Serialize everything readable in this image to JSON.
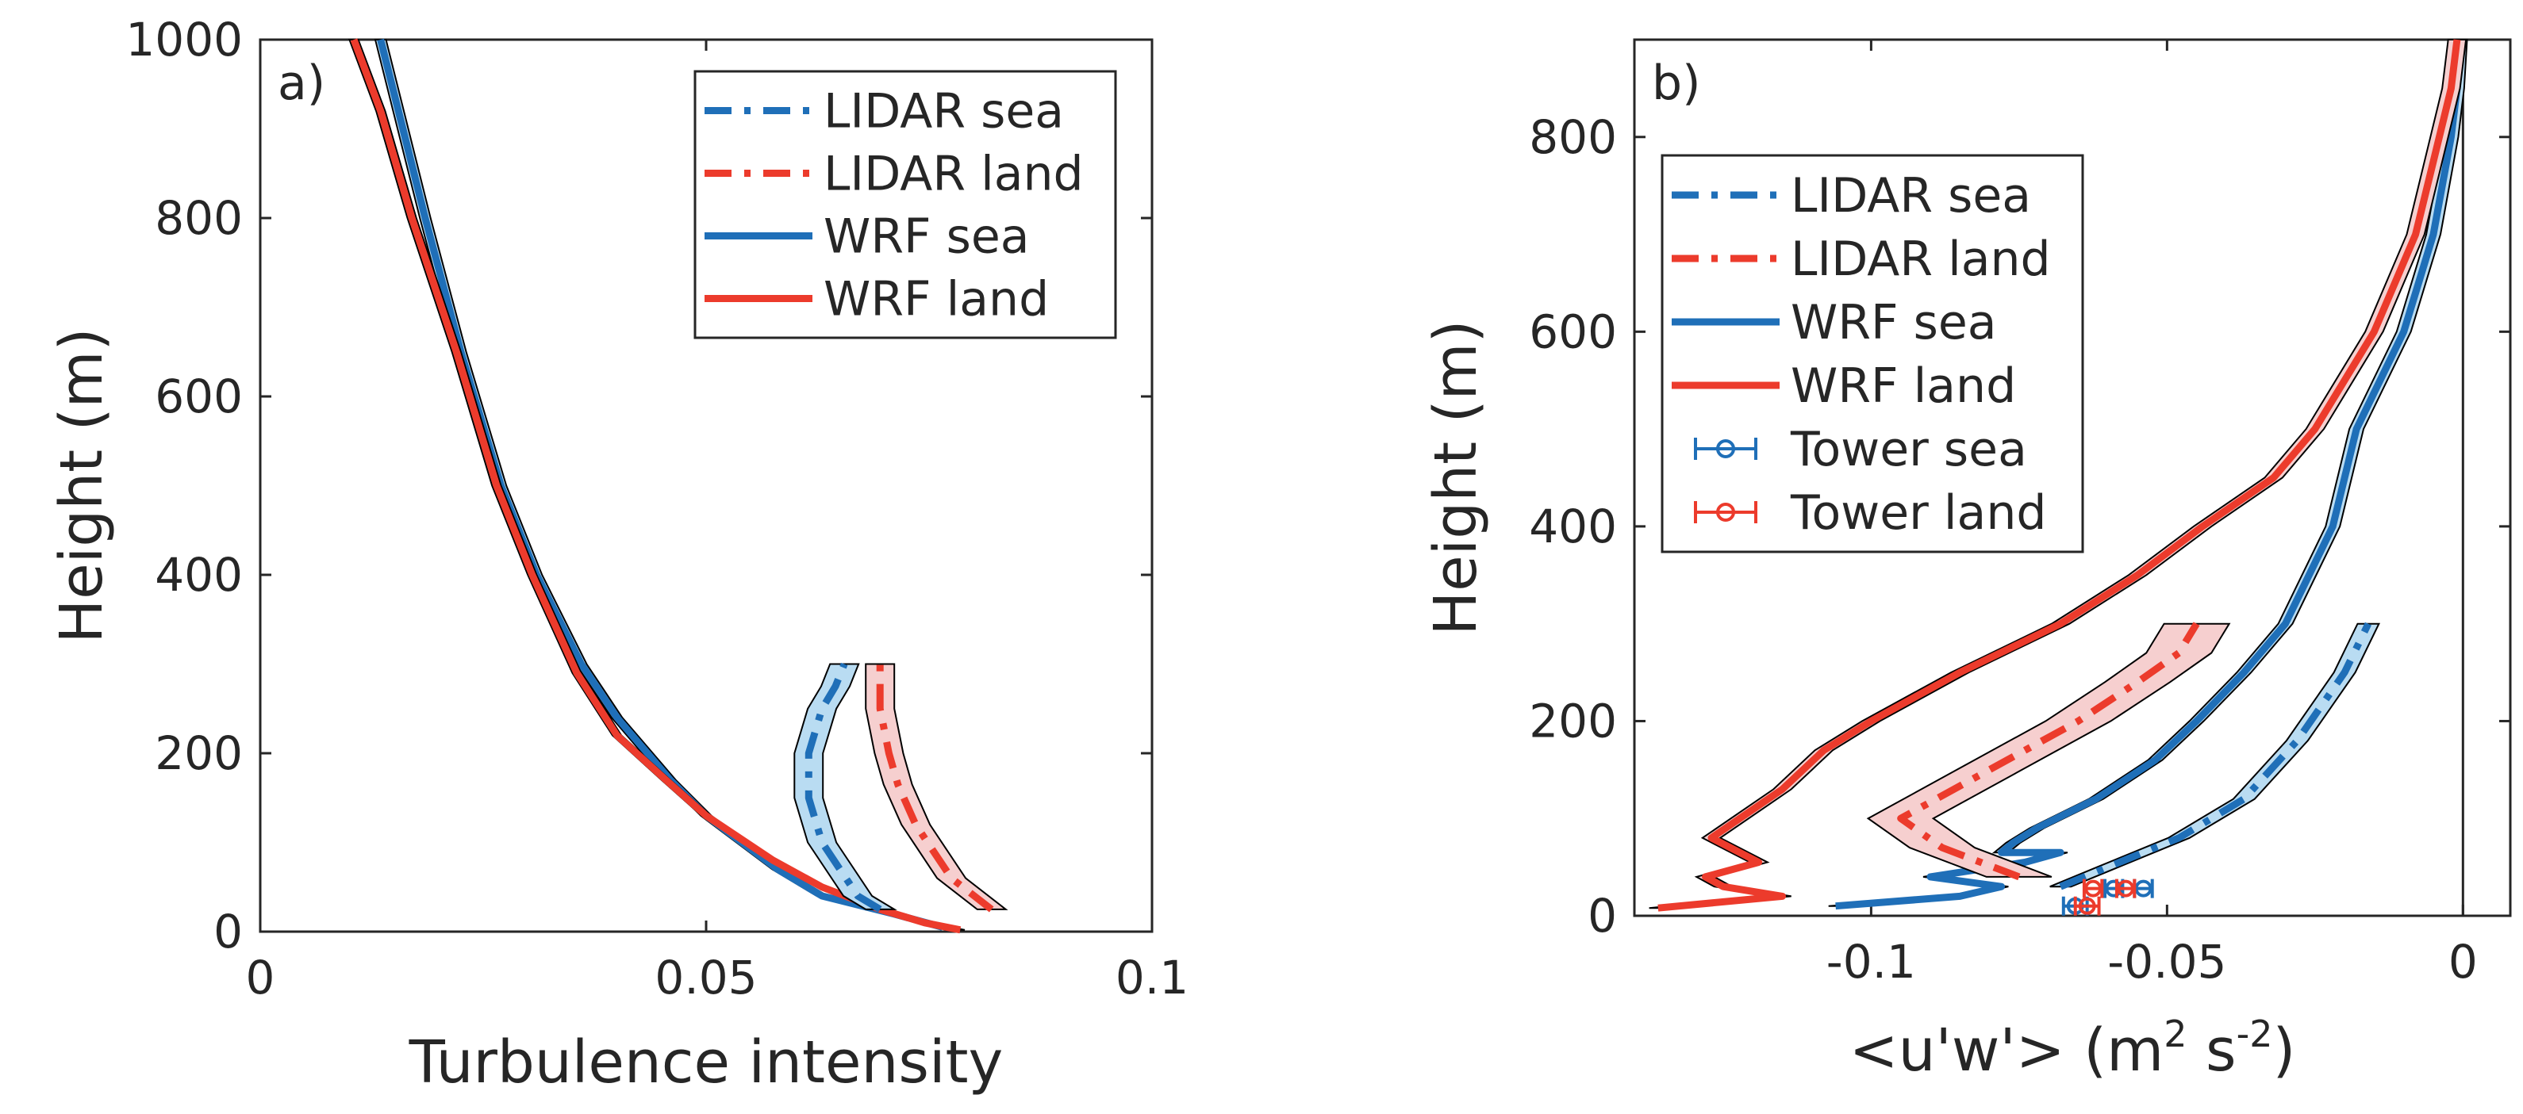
{
  "colors": {
    "sea": "#1f6fb8",
    "land": "#ec3b2c",
    "sea_fill": "#b9dcf2",
    "land_fill": "#f6cfcf",
    "axis": "#262626",
    "outline": "#000000"
  },
  "chart_data": [
    {
      "type": "line",
      "panel_label": "a)",
      "xlabel": "Turbulence intensity",
      "ylabel": "Height (m)",
      "xlim": [
        0,
        0.1
      ],
      "ylim": [
        0,
        1000
      ],
      "xticks": [
        0,
        0.05,
        0.1
      ],
      "xtick_labels": [
        "0",
        "0.05",
        "0.1"
      ],
      "yticks": [
        0,
        200,
        400,
        600,
        800,
        1000
      ],
      "ytick_labels": [
        "0",
        "200",
        "400",
        "600",
        "800",
        "1000"
      ],
      "legend_position": "top-right",
      "legend": [
        {
          "label": "LIDAR sea",
          "color": "sea",
          "style": "dashdot"
        },
        {
          "label": "LIDAR land",
          "color": "land",
          "style": "dashdot"
        },
        {
          "label": "WRF sea",
          "color": "sea",
          "style": "solid"
        },
        {
          "label": "WRF land",
          "color": "land",
          "style": "solid"
        }
      ],
      "series": [
        {
          "name": "WRF sea",
          "color": "sea",
          "style": "solid",
          "halfwidth": 0.0006,
          "x": [
            0.0765,
            0.071,
            0.063,
            0.058,
            0.05,
            0.046,
            0.04,
            0.036,
            0.031,
            0.027,
            0.0225,
            0.0185,
            0.0155,
            0.0135
          ],
          "y": [
            5,
            20,
            40,
            70,
            130,
            170,
            240,
            300,
            400,
            500,
            650,
            800,
            920,
            1000
          ]
        },
        {
          "name": "WRF land",
          "color": "land",
          "style": "solid",
          "halfwidth": 0.0005,
          "x": [
            0.0785,
            0.0745,
            0.0695,
            0.063,
            0.0575,
            0.05,
            0.0455,
            0.04,
            0.0355,
            0.0305,
            0.0265,
            0.022,
            0.017,
            0.0135,
            0.0105
          ],
          "y": [
            2,
            10,
            25,
            50,
            80,
            130,
            170,
            220,
            290,
            400,
            500,
            650,
            800,
            920,
            1000
          ]
        },
        {
          "name": "LIDAR sea",
          "color": "sea",
          "style": "dashdot",
          "halfwidth": 0.0016,
          "x": [
            0.0695,
            0.067,
            0.063,
            0.0615,
            0.0615,
            0.063,
            0.0645,
            0.0655
          ],
          "y": [
            25,
            40,
            100,
            150,
            200,
            250,
            275,
            300
          ]
        },
        {
          "name": "LIDAR land",
          "color": "land",
          "style": "dashdot",
          "halfwidth": 0.0016,
          "x": [
            0.082,
            0.0775,
            0.0735,
            0.0715,
            0.0705,
            0.0695,
            0.0695
          ],
          "y": [
            25,
            60,
            120,
            165,
            200,
            250,
            300
          ]
        }
      ]
    },
    {
      "type": "line",
      "panel_label": "b)",
      "xlabel": "<u'w'> (m",
      "xlabel_sup1": "2",
      "xlabel_mid": " s",
      "xlabel_sup2": "-2",
      "xlabel_end": ")",
      "ylabel": "Height (m)",
      "xlim": [
        -0.14,
        0.008
      ],
      "ylim": [
        0,
        900
      ],
      "xticks": [
        -0.1,
        -0.05,
        0
      ],
      "xtick_labels": [
        "-0.1",
        "-0.05",
        "0"
      ],
      "yticks": [
        0,
        200,
        400,
        600,
        800
      ],
      "ytick_labels": [
        "0",
        "200",
        "400",
        "600",
        "800"
      ],
      "zero_line": true,
      "legend_position": "top-left",
      "legend": [
        {
          "label": "LIDAR sea",
          "color": "sea",
          "style": "dashdot"
        },
        {
          "label": "LIDAR land",
          "color": "land",
          "style": "dashdot"
        },
        {
          "label": "WRF sea",
          "color": "sea",
          "style": "solid"
        },
        {
          "label": "WRF land",
          "color": "land",
          "style": "solid"
        },
        {
          "label": "Tower sea",
          "color": "sea",
          "style": "errorbar"
        },
        {
          "label": "Tower land",
          "color": "land",
          "style": "errorbar"
        }
      ],
      "series": [
        {
          "name": "WRF sea",
          "color": "sea",
          "style": "solid",
          "halfwidth": 0.0012,
          "x": [
            -0.106,
            -0.085,
            -0.078,
            -0.09,
            -0.074,
            -0.068,
            -0.078,
            -0.076,
            -0.072,
            -0.062,
            -0.052,
            -0.045,
            -0.037,
            -0.03,
            -0.022,
            -0.018,
            -0.01,
            -0.005,
            -0.002,
            -0.001,
            -0.0005
          ],
          "y": [
            10,
            20,
            30,
            40,
            55,
            65,
            65,
            75,
            90,
            120,
            160,
            200,
            250,
            300,
            400,
            500,
            600,
            700,
            800,
            850,
            900
          ]
        },
        {
          "name": "WRF land",
          "color": "land",
          "style": "solid",
          "halfwidth": 0.0015,
          "x": [
            -0.136,
            -0.115,
            -0.125,
            -0.128,
            -0.119,
            -0.127,
            -0.115,
            -0.108,
            -0.1,
            -0.085,
            -0.068,
            -0.055,
            -0.044,
            -0.032,
            -0.025,
            -0.015,
            -0.008,
            -0.004,
            -0.002,
            -0.001
          ],
          "y": [
            8,
            20,
            30,
            40,
            55,
            80,
            130,
            170,
            200,
            250,
            300,
            350,
            400,
            450,
            500,
            600,
            700,
            800,
            850,
            900
          ]
        },
        {
          "name": "LIDAR sea",
          "color": "sea",
          "style": "dashdot",
          "halfwidth": 0.0018,
          "x": [
            -0.068,
            -0.06,
            -0.048,
            -0.037,
            -0.028,
            -0.02,
            -0.016
          ],
          "y": [
            30,
            50,
            80,
            120,
            180,
            250,
            300
          ]
        },
        {
          "name": "LIDAR land",
          "color": "land",
          "style": "dashdot",
          "halfwidth": 0.0055,
          "x": [
            -0.075,
            -0.088,
            -0.095,
            -0.08,
            -0.065,
            -0.055,
            -0.048,
            -0.045
          ],
          "y": [
            40,
            70,
            100,
            150,
            200,
            240,
            270,
            300
          ]
        }
      ],
      "tower_points": [
        {
          "name": "Tower sea",
          "color": "sea",
          "points": [
            {
              "x": -0.0655,
              "y": 10,
              "xerr": 0.002
            },
            {
              "x": -0.059,
              "y": 28,
              "xerr": 0.0015
            },
            {
              "x": -0.054,
              "y": 28,
              "xerr": 0.0015
            }
          ]
        },
        {
          "name": "Tower land",
          "color": "land",
          "points": [
            {
              "x": -0.0635,
              "y": 10,
              "xerr": 0.002
            },
            {
              "x": -0.057,
              "y": 28,
              "xerr": 0.0015
            },
            {
              "x": -0.0625,
              "y": 28,
              "xerr": 0.0015
            }
          ]
        }
      ]
    }
  ]
}
